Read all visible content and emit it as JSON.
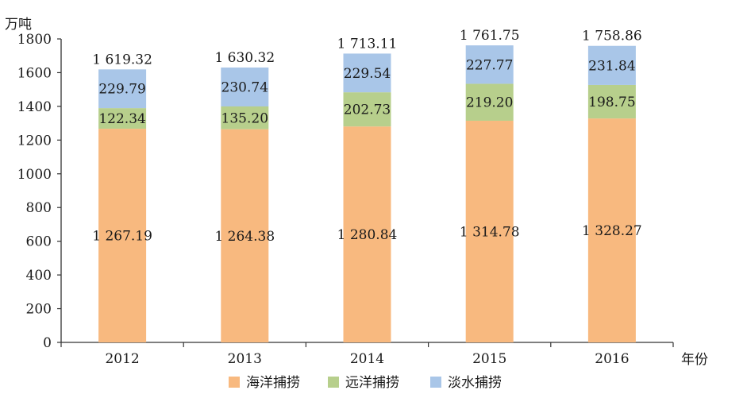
{
  "chart_data": {
    "type": "bar",
    "stacked": true,
    "categories": [
      "2012",
      "2013",
      "2014",
      "2015",
      "2016"
    ],
    "series": [
      {
        "name": "海洋捕捞",
        "color": "#f8b97f",
        "values": [
          1267.19,
          1264.38,
          1280.84,
          1314.78,
          1328.27
        ],
        "labels": [
          "1 267.19",
          "1 264.38",
          "1 280.84",
          "1 314.78",
          "1 328.27"
        ]
      },
      {
        "name": "远洋捕捞",
        "color": "#b7cf8c",
        "values": [
          122.34,
          135.2,
          202.73,
          219.2,
          198.75
        ],
        "labels": [
          "122.34",
          "135.20",
          "202.73",
          "219.20",
          "198.75"
        ]
      },
      {
        "name": "淡水捕捞",
        "color": "#a9c6e8",
        "values": [
          229.79,
          230.74,
          229.54,
          227.77,
          231.84
        ],
        "labels": [
          "229.79",
          "230.74",
          "229.54",
          "227.77",
          "231.84"
        ]
      }
    ],
    "totals": [
      1619.32,
      1630.32,
      1713.11,
      1761.75,
      1758.86
    ],
    "total_labels": [
      "1 619.32",
      "1 630.32",
      "1 713.11",
      "1 761.75",
      "1 758.86"
    ],
    "ylabel": "万吨",
    "xlabel": "年份",
    "ylim": [
      0,
      1800
    ],
    "yticks": [
      0,
      200,
      400,
      600,
      800,
      1000,
      1200,
      1400,
      1600,
      1800
    ],
    "grid": false,
    "legend_position": "bottom"
  }
}
